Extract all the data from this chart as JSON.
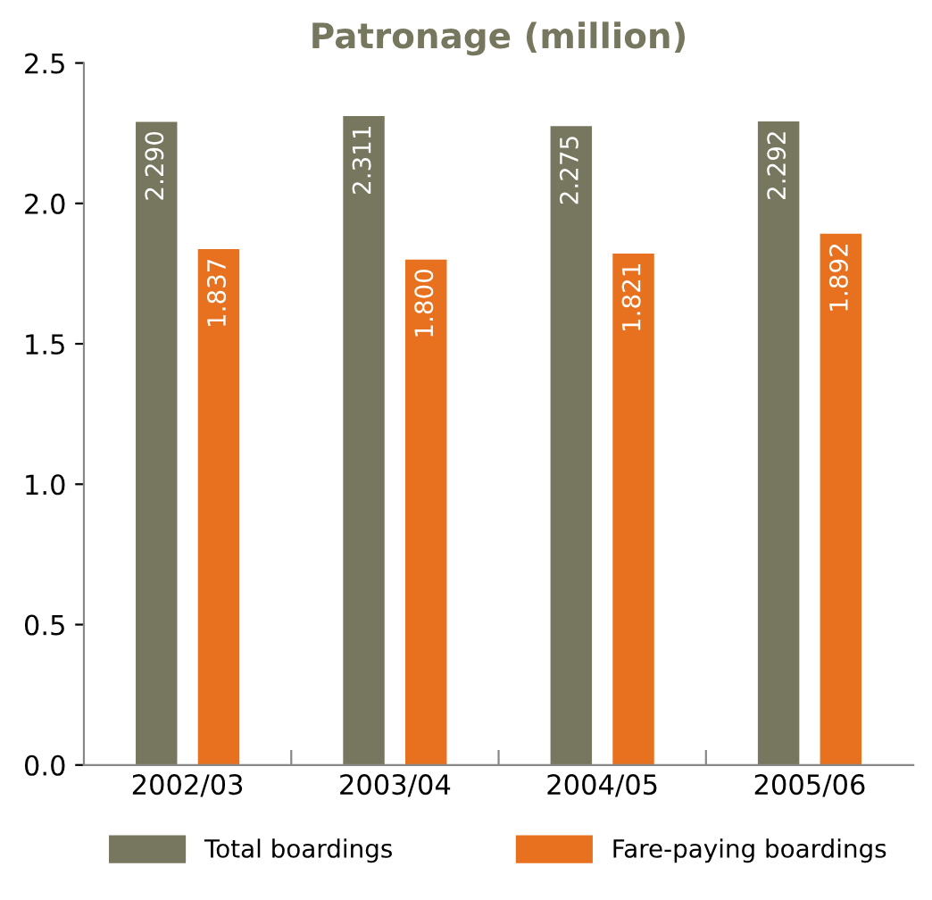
{
  "chart_data": {
    "type": "bar",
    "title": "Patronage (million)",
    "categories": [
      "2002/03",
      "2003/04",
      "2004/05",
      "2005/06"
    ],
    "series": [
      {
        "name": "Total boardings",
        "color": "#77775f",
        "values": [
          2.29,
          2.311,
          2.275,
          2.292
        ],
        "value_labels": [
          "2.290",
          "2.311",
          "2.275",
          "2.292"
        ]
      },
      {
        "name": "Fare-paying boardings",
        "color": "#e8711f",
        "values": [
          1.837,
          1.8,
          1.821,
          1.892
        ],
        "value_labels": [
          "1.837",
          "1.800",
          "1.821",
          "1.892"
        ]
      }
    ],
    "ylim": [
      0,
      2.5
    ],
    "yticks": [
      {
        "value": 0,
        "label": "0.0"
      },
      {
        "value": 0.5,
        "label": "0.5"
      },
      {
        "value": 1.0,
        "label": "1.0"
      },
      {
        "value": 1.5,
        "label": "1.5"
      },
      {
        "value": 2.0,
        "label": "2.0"
      },
      {
        "value": 2.5,
        "label": "2.5"
      }
    ],
    "grid": false,
    "legend": "bottom"
  }
}
